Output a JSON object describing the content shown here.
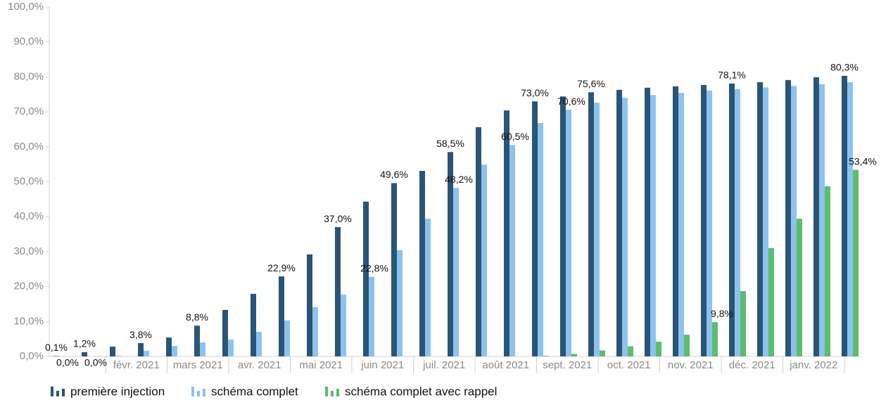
{
  "chart_data": {
    "type": "bar",
    "categories": [
      null,
      null,
      null,
      null,
      null,
      null,
      null,
      null,
      null,
      null,
      null,
      null,
      null,
      null,
      null,
      null,
      null,
      null,
      null,
      null,
      null,
      null,
      null,
      null,
      null,
      null,
      null,
      null,
      null
    ],
    "x_axis_labels": [
      "févr. 2021",
      "mars 2021",
      "avr. 2021",
      "mai 2021",
      "juin 2021",
      "juil. 2021",
      "août 2021",
      "sept. 2021",
      "oct. 2021",
      "nov. 2021",
      "déc. 2021",
      "janv. 2022"
    ],
    "series": [
      {
        "name": "première injection",
        "color": "#2a5576",
        "values": [
          0.1,
          1.2,
          2.8,
          3.8,
          5.4,
          8.8,
          13.3,
          17.9,
          22.9,
          29.2,
          37.0,
          44.3,
          49.6,
          53.1,
          58.5,
          65.6,
          70.4,
          73.0,
          74.4,
          75.6,
          76.3,
          76.9,
          77.3,
          77.7,
          78.1,
          78.5,
          79.1,
          79.9,
          80.3
        ],
        "value_labels": [
          "0,1%",
          "1,2%",
          null,
          "3,8%",
          null,
          "8,8%",
          null,
          null,
          "22,9%",
          null,
          "37,0%",
          null,
          "49,6%",
          null,
          "58,5%",
          null,
          null,
          "73,0%",
          null,
          "75,6%",
          null,
          null,
          null,
          null,
          "78,1%",
          null,
          null,
          null,
          "80,3%"
        ]
      },
      {
        "name": "schéma complet",
        "color": "#8dc2ee",
        "values": [
          0.0,
          0.0,
          0.2,
          1.6,
          3.0,
          4.0,
          4.8,
          7.0,
          10.3,
          14.1,
          17.7,
          22.8,
          30.4,
          39.4,
          48.2,
          54.9,
          60.5,
          66.8,
          70.6,
          72.6,
          74.0,
          74.8,
          75.4,
          76.1,
          76.5,
          77.0,
          77.4,
          77.9,
          78.5
        ],
        "value_labels": [
          "0,0%",
          "0,0%",
          null,
          null,
          null,
          null,
          null,
          null,
          null,
          null,
          null,
          "22,8%",
          null,
          null,
          "48,2%",
          null,
          "60,5%",
          null,
          "70,6%",
          null,
          null,
          null,
          null,
          null,
          null,
          null,
          null,
          null,
          null
        ]
      },
      {
        "name": "schéma complet avec rappel",
        "color": "#5cbd6c",
        "values": [
          null,
          null,
          null,
          null,
          null,
          null,
          null,
          null,
          null,
          null,
          null,
          null,
          null,
          null,
          null,
          null,
          null,
          0.2,
          0.7,
          1.7,
          2.9,
          4.2,
          6.2,
          9.8,
          18.7,
          31.0,
          39.4,
          48.7,
          53.4
        ],
        "value_labels": [
          null,
          null,
          null,
          null,
          null,
          null,
          null,
          null,
          null,
          null,
          null,
          null,
          null,
          null,
          null,
          null,
          null,
          null,
          null,
          null,
          null,
          null,
          null,
          "9,8%",
          null,
          null,
          null,
          null,
          "53,4%"
        ]
      }
    ],
    "ylim": [
      0,
      100
    ],
    "yticks": [
      {
        "value": 0,
        "label": "0,0%"
      },
      {
        "value": 10,
        "label": "10,0%"
      },
      {
        "value": 20,
        "label": "20,0%"
      },
      {
        "value": 30,
        "label": "30,0%"
      },
      {
        "value": 40,
        "label": "40,0%"
      },
      {
        "value": 50,
        "label": "50,0%"
      },
      {
        "value": 60,
        "label": "60,0%"
      },
      {
        "value": 70,
        "label": "70,0%"
      },
      {
        "value": 80,
        "label": "80,0%"
      },
      {
        "value": 90,
        "label": "90,0%"
      },
      {
        "value": 100,
        "label": "100,0%"
      }
    ],
    "grid": false,
    "legend": "bottom"
  }
}
